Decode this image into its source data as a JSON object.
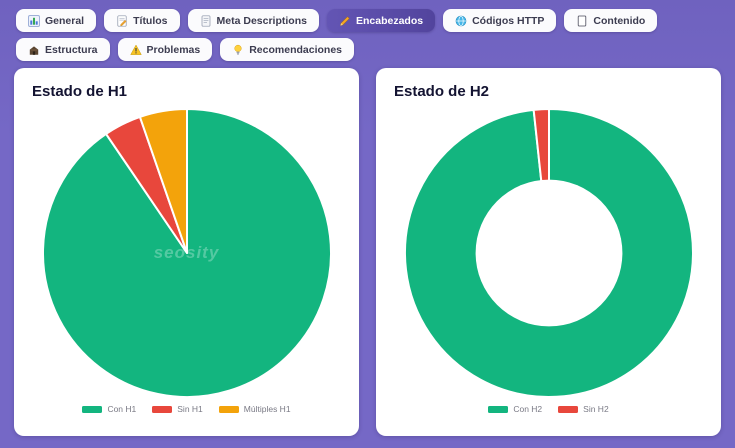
{
  "page": {
    "background_color": "#7568c6",
    "active_tab_color": "#52449d"
  },
  "tabs": [
    {
      "label": "General",
      "icon": "bar-chart-icon",
      "active": false
    },
    {
      "label": "Títulos",
      "icon": "memo-icon",
      "active": false
    },
    {
      "label": "Meta Descriptions",
      "icon": "document-icon",
      "active": false
    },
    {
      "label": "Encabezados",
      "icon": "pencil-icon",
      "active": true
    },
    {
      "label": "Códigos HTTP",
      "icon": "globe-icon",
      "active": false
    },
    {
      "label": "Contenido",
      "icon": "page-icon",
      "active": false
    },
    {
      "label": "Estructura",
      "icon": "structure-icon",
      "active": false
    },
    {
      "label": "Problemas",
      "icon": "warning-icon",
      "active": false
    },
    {
      "label": "Recomendaciones",
      "icon": "lightbulb-icon",
      "active": false
    }
  ],
  "watermark": "seosity",
  "chart_data": [
    {
      "type": "pie",
      "title": "Estado de H1",
      "labels": [
        "Con H1",
        "Sin H1",
        "Múltiples H1"
      ],
      "values": [
        90.5,
        4.2,
        5.3
      ],
      "colors": [
        "#13b57f",
        "#e8473c",
        "#f3a30b"
      ],
      "legend_position": "bottom"
    },
    {
      "type": "donut",
      "title": "Estado de H2",
      "labels": [
        "Con H2",
        "Sin H2"
      ],
      "values": [
        98.3,
        1.7
      ],
      "colors": [
        "#13b57f",
        "#e8473c"
      ],
      "inner_radius_ratio": 0.51,
      "legend_position": "bottom"
    }
  ]
}
